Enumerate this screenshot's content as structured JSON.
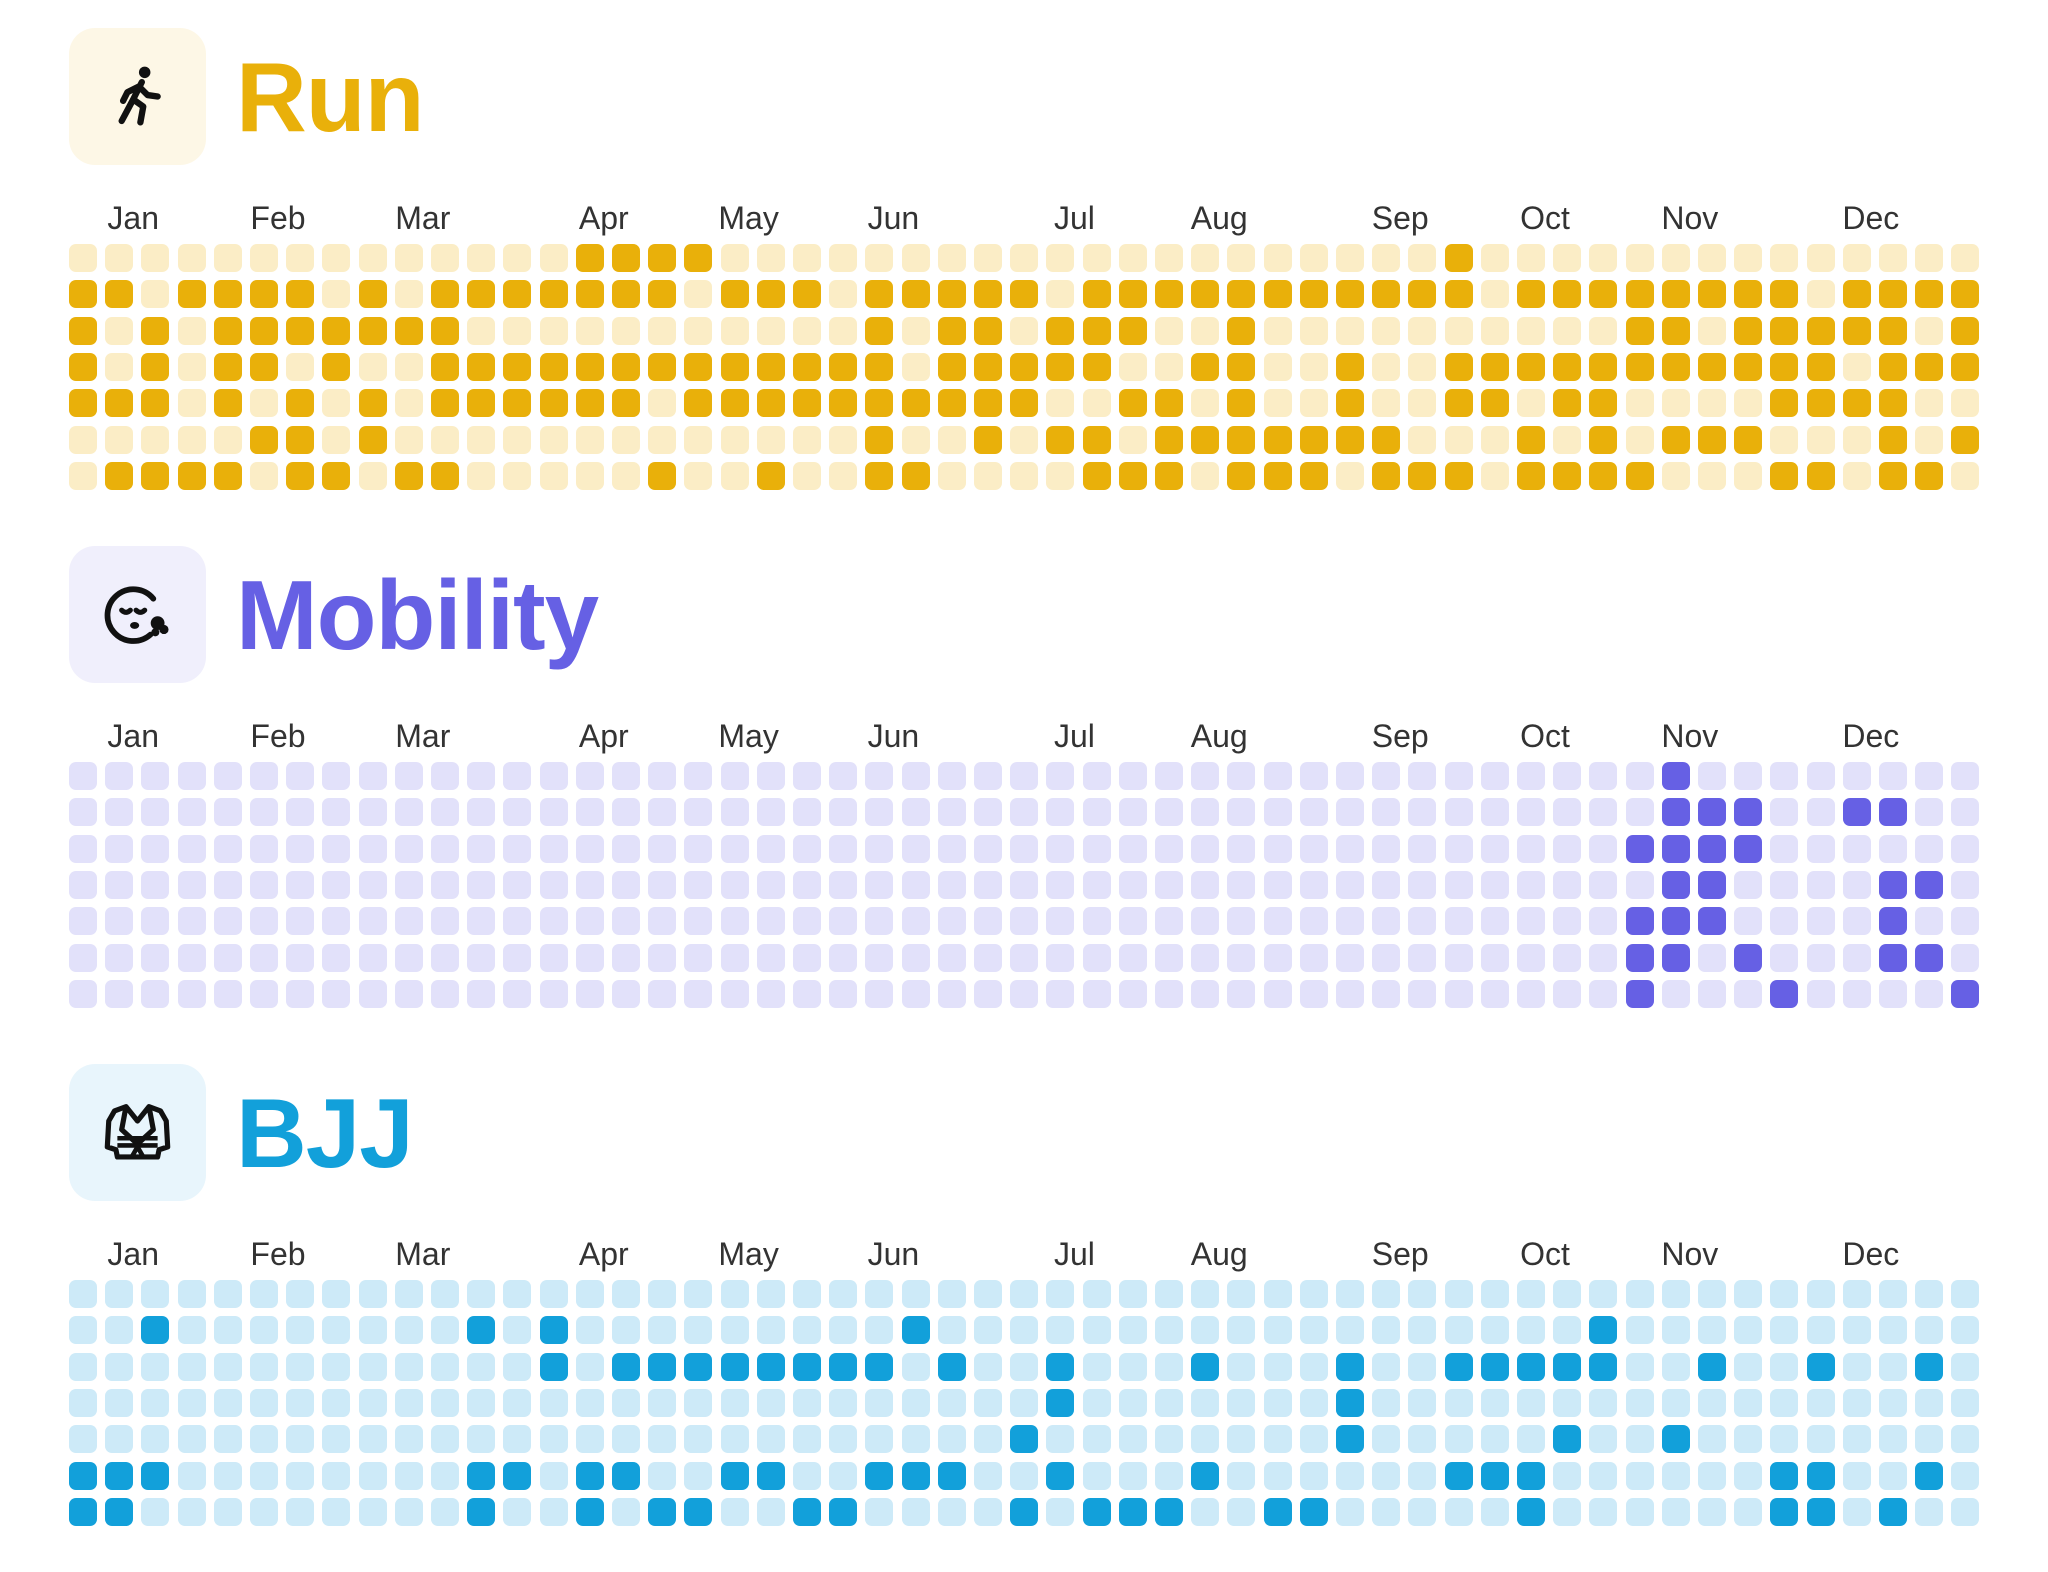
{
  "months": [
    "Jan",
    "Feb",
    "Mar",
    "Apr",
    "May",
    "Jun",
    "Jul",
    "Aug",
    "Sep",
    "Oct",
    "Nov",
    "Dec"
  ],
  "month_week_index": [
    1,
    5,
    9,
    14,
    18,
    22,
    27,
    31,
    36,
    40,
    44,
    49
  ],
  "weeks": 53,
  "activities": [
    {
      "id": "run",
      "title": "Run",
      "icon": "runner-icon",
      "color": "#E9B00A",
      "empty_color": "#FBEDC6",
      "icon_bg": "#FDF7E6",
      "grid": [
        "00000000000000111100000000000000000000100000000000000",
        "11011110101111111011101111101111111111101111111101111",
        "10101111111000000000001011011100100000000001101111101",
        "10101101001111111111111011111001100100111111111110111",
        "11101010101111110111111111100110100100110110000111100",
        "00000110100000000000001001011011111110001010111000101",
        "01111011011000001001001100001110111011101111000110110"
      ]
    },
    {
      "id": "mobility",
      "title": "Mobility",
      "icon": "face-exhale-icon",
      "color": "#6660E4",
      "empty_color": "#E2E1FA",
      "icon_bg": "#F0EFFC",
      "grid": [
        "00000000000000000000000000000000000000000000100000000",
        "00000000000000000000000000000000000000000000111001100",
        "00000000000000000000000000000000000000000001111000000",
        "00000000000000000000000000000000000000000000110000110",
        "00000000000000000000000000000000000000000001110000100",
        "00000000000000000000000000000000000000000001101000110",
        "00000000000000000000000000000000000000000001000100001"
      ]
    },
    {
      "id": "bjj",
      "title": "BJJ",
      "icon": "gi-jacket-icon",
      "color": "#12A0DA",
      "empty_color": "#CDEAF8",
      "icon_bg": "#E8F5FC",
      "grid": [
        "00000000000000000000000000000000000000000000000000000",
        "00100000000101000000000100000000000000000010000000000",
        "00000000000001011111111010010001000100111110010010010",
        "00000000000000000000000000010000000100000000000000000",
        "00000000000000000000000000100000000100000100100000000",
        "11100000000110110011001110010001000000111000000110010",
        "11000000000100101100110000101110011000001000000110100"
      ]
    }
  ]
}
